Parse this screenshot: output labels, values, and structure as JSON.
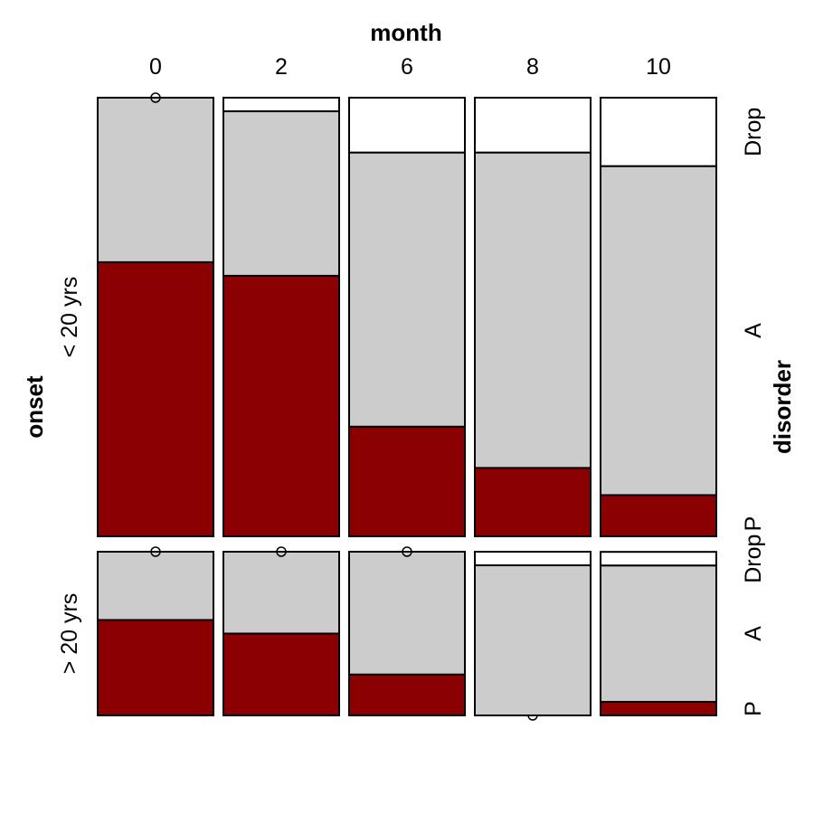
{
  "chart_data": {
    "type": "mosaic",
    "x_variable": "month",
    "row_variable": "onset",
    "fill_variable": "disorder",
    "months": [
      "0",
      "2",
      "6",
      "8",
      "10"
    ],
    "onset_groups": [
      "< 20 yrs",
      "> 20 yrs"
    ],
    "disorder_levels": [
      "P",
      "A",
      "Drop"
    ],
    "colors": {
      "P": "#8b0000",
      "A": "#cccccc",
      "Drop": "#ffffff"
    },
    "proportions": {
      "< 20 yrs": [
        {
          "P": 0.625,
          "A": 0.375,
          "Drop": 0.0
        },
        {
          "P": 0.594,
          "A": 0.375,
          "Drop": 0.031
        },
        {
          "P": 0.25,
          "A": 0.625,
          "Drop": 0.125
        },
        {
          "P": 0.156,
          "A": 0.719,
          "Drop": 0.125
        },
        {
          "P": 0.094,
          "A": 0.75,
          "Drop": 0.156
        }
      ],
      "> 20 yrs": [
        {
          "P": 0.583,
          "A": 0.417,
          "Drop": 0.0
        },
        {
          "P": 0.5,
          "A": 0.5,
          "Drop": 0.0
        },
        {
          "P": 0.25,
          "A": 0.75,
          "Drop": 0.0
        },
        {
          "P": 0.0,
          "A": 0.917,
          "Drop": 0.083
        },
        {
          "P": 0.083,
          "A": 0.833,
          "Drop": 0.083
        }
      ]
    },
    "axis_labels": {
      "top": "month",
      "left": "onset",
      "right": "disorder"
    }
  }
}
